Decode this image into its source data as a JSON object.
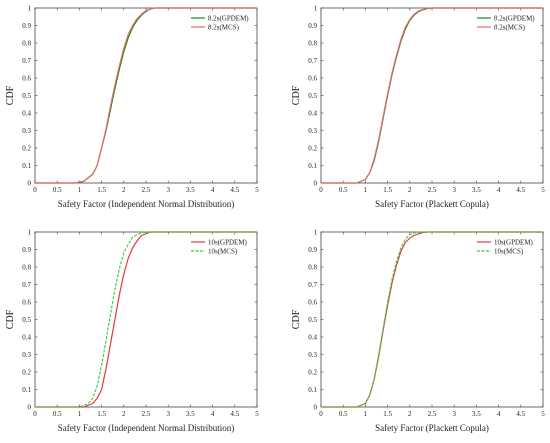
{
  "chart_data": [
    {
      "type": "line",
      "xlabel": "Safety Factor (Independent Normal Distribution)",
      "ylabel": "CDF",
      "xlim": [
        0,
        5
      ],
      "ylim": [
        0,
        1
      ],
      "xticks": [
        "0",
        "0.5",
        "1",
        "1.5",
        "2",
        "2.5",
        "3",
        "3.5",
        "4",
        "4.5",
        "5"
      ],
      "yticks": [
        "0",
        "0.1",
        "0.2",
        "0.3",
        "0.4",
        "0.5",
        "0.6",
        "0.7",
        "0.8",
        "0.9",
        "1"
      ],
      "grid": false,
      "legend": "top-right",
      "series": [
        {
          "name": "8.2s(GPDEM)",
          "color": "#1a8a1a",
          "dash": "solid",
          "x": [
            0,
            0.9,
            1.1,
            1.3,
            1.4,
            1.5,
            1.6,
            1.7,
            1.8,
            1.9,
            2.0,
            2.1,
            2.2,
            2.3,
            2.4,
            2.5,
            2.6,
            2.7,
            2.8,
            5
          ],
          "y": [
            0,
            0,
            0.01,
            0.05,
            0.1,
            0.2,
            0.3,
            0.42,
            0.54,
            0.65,
            0.75,
            0.83,
            0.89,
            0.93,
            0.96,
            0.98,
            0.995,
            1,
            1,
            1
          ]
        },
        {
          "name": "8.2s(MCS)",
          "color": "#e36a6a",
          "dash": "solid",
          "x": [
            0,
            0.9,
            1.1,
            1.3,
            1.4,
            1.5,
            1.6,
            1.7,
            1.8,
            1.9,
            2.0,
            2.1,
            2.2,
            2.3,
            2.4,
            2.5,
            2.6,
            2.7,
            2.8,
            5
          ],
          "y": [
            0,
            0,
            0.01,
            0.05,
            0.1,
            0.2,
            0.31,
            0.44,
            0.56,
            0.67,
            0.77,
            0.85,
            0.9,
            0.94,
            0.965,
            0.985,
            0.995,
            1,
            1,
            1
          ]
        }
      ]
    },
    {
      "type": "line",
      "xlabel": "Safety Factor (Plackett Copula)",
      "ylabel": "CDF",
      "xlim": [
        0,
        5
      ],
      "ylim": [
        0,
        1
      ],
      "xticks": [
        "0",
        "0.5",
        "1",
        "1.5",
        "2",
        "2.5",
        "3",
        "3.5",
        "4",
        "4.5",
        "5"
      ],
      "yticks": [
        "0",
        "0.1",
        "0.2",
        "0.3",
        "0.4",
        "0.5",
        "0.6",
        "0.7",
        "0.8",
        "0.9",
        "1"
      ],
      "grid": false,
      "legend": "top-right",
      "series": [
        {
          "name": "8.2s(GPDEM)",
          "color": "#1a8a1a",
          "dash": "solid",
          "x": [
            0,
            0.8,
            1.0,
            1.1,
            1.2,
            1.3,
            1.4,
            1.5,
            1.6,
            1.7,
            1.8,
            1.9,
            2.0,
            2.1,
            2.2,
            2.3,
            2.4,
            2.5,
            5
          ],
          "y": [
            0,
            0,
            0.02,
            0.06,
            0.13,
            0.24,
            0.37,
            0.5,
            0.62,
            0.72,
            0.81,
            0.88,
            0.93,
            0.96,
            0.98,
            0.99,
            0.997,
            1,
            1
          ]
        },
        {
          "name": "8.2s(MCS)",
          "color": "#e36a6a",
          "dash": "solid",
          "x": [
            0,
            0.8,
            1.0,
            1.1,
            1.2,
            1.3,
            1.4,
            1.5,
            1.6,
            1.7,
            1.8,
            1.9,
            2.0,
            2.1,
            2.2,
            2.3,
            2.4,
            2.5,
            5
          ],
          "y": [
            0,
            0,
            0.02,
            0.06,
            0.14,
            0.25,
            0.38,
            0.51,
            0.63,
            0.73,
            0.82,
            0.89,
            0.935,
            0.965,
            0.983,
            0.992,
            0.998,
            1,
            1
          ]
        }
      ]
    },
    {
      "type": "line",
      "xlabel": "Safety Factor (Independent Normal Distribution)",
      "ylabel": "CDF",
      "xlim": [
        0,
        5
      ],
      "ylim": [
        0,
        1
      ],
      "xticks": [
        "0",
        "0.5",
        "1",
        "1.5",
        "2",
        "2.5",
        "3",
        "3.5",
        "4",
        "4.5",
        "5"
      ],
      "yticks": [
        "0",
        "0.1",
        "0.2",
        "0.3",
        "0.4",
        "0.5",
        "0.6",
        "0.7",
        "0.8",
        "0.9",
        "1"
      ],
      "grid": false,
      "legend": "top-right",
      "series": [
        {
          "name": "10s(GPDEM)",
          "color": "#e23b3b",
          "dash": "solid",
          "x": [
            0,
            1.1,
            1.3,
            1.4,
            1.5,
            1.6,
            1.7,
            1.8,
            1.9,
            2.0,
            2.1,
            2.2,
            2.3,
            2.4,
            2.5,
            2.6,
            2.7,
            5
          ],
          "y": [
            0,
            0,
            0.02,
            0.05,
            0.1,
            0.22,
            0.36,
            0.5,
            0.64,
            0.76,
            0.85,
            0.91,
            0.95,
            0.98,
            0.99,
            1,
            1,
            1
          ]
        },
        {
          "name": "10s(MCS)",
          "color": "#44cc44",
          "dash": "dashed",
          "x": [
            0,
            1.0,
            1.2,
            1.3,
            1.4,
            1.5,
            1.6,
            1.7,
            1.8,
            1.9,
            2.0,
            2.1,
            2.2,
            2.3,
            2.4,
            2.5,
            2.6,
            5
          ],
          "y": [
            0,
            0,
            0.02,
            0.05,
            0.12,
            0.24,
            0.38,
            0.53,
            0.67,
            0.79,
            0.88,
            0.93,
            0.97,
            0.985,
            0.995,
            1,
            1,
            1
          ]
        }
      ]
    },
    {
      "type": "line",
      "xlabel": "Safety Factor (Plackett Copula)",
      "ylabel": "CDF",
      "xlim": [
        0,
        5
      ],
      "ylim": [
        0,
        1
      ],
      "xticks": [
        "0",
        "0.5",
        "1",
        "1.5",
        "2",
        "2.5",
        "3",
        "3.5",
        "4",
        "4.5",
        "5"
      ],
      "yticks": [
        "0",
        "0.1",
        "0.2",
        "0.3",
        "0.4",
        "0.5",
        "0.6",
        "0.7",
        "0.8",
        "0.9",
        "1"
      ],
      "grid": false,
      "legend": "top-right",
      "series": [
        {
          "name": "10s(GPDEM)",
          "color": "#e23b3b",
          "dash": "solid",
          "x": [
            0,
            0.8,
            1.0,
            1.1,
            1.2,
            1.3,
            1.4,
            1.5,
            1.6,
            1.7,
            1.8,
            1.9,
            2.0,
            2.1,
            2.2,
            2.3,
            2.4,
            5
          ],
          "y": [
            0,
            0,
            0.02,
            0.07,
            0.16,
            0.29,
            0.44,
            0.58,
            0.71,
            0.81,
            0.89,
            0.94,
            0.965,
            0.98,
            0.99,
            0.997,
            1,
            1
          ]
        },
        {
          "name": "10s(MCS)",
          "color": "#44cc44",
          "dash": "dashed",
          "x": [
            0,
            0.8,
            1.0,
            1.1,
            1.2,
            1.3,
            1.4,
            1.5,
            1.6,
            1.7,
            1.8,
            1.9,
            2.0,
            2.1,
            2.2,
            2.3,
            2.4,
            5
          ],
          "y": [
            0,
            0,
            0.02,
            0.07,
            0.16,
            0.3,
            0.45,
            0.6,
            0.73,
            0.83,
            0.91,
            0.96,
            0.985,
            0.995,
            0.998,
            1,
            1,
            1
          ]
        }
      ]
    }
  ]
}
